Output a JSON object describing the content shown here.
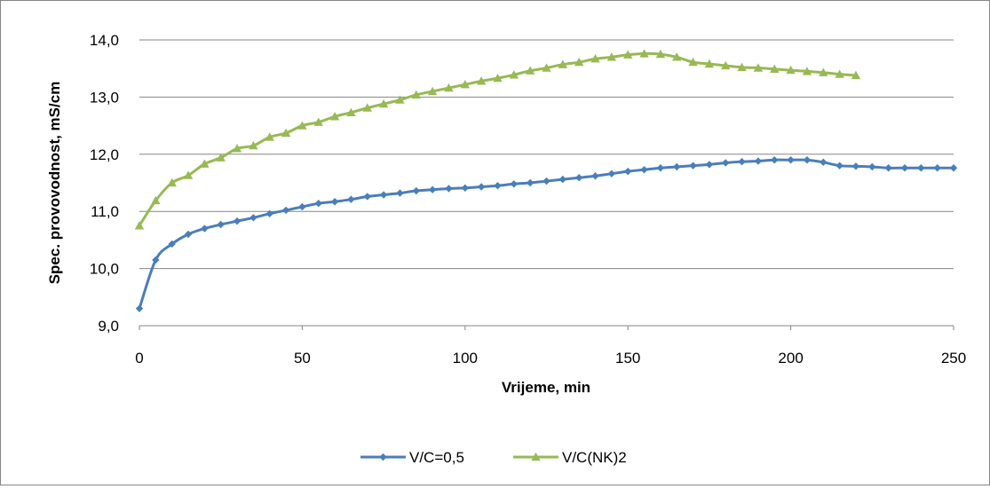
{
  "chart_data": {
    "type": "line",
    "title": "",
    "xlabel": "Vrijeme, min",
    "ylabel": "Spec. provovodnost, mS/cm",
    "xlim": [
      0,
      250
    ],
    "ylim": [
      9.0,
      14.0
    ],
    "x_ticks": [
      0,
      50,
      100,
      150,
      200,
      250
    ],
    "y_ticks": [
      9.0,
      10.0,
      11.0,
      12.0,
      13.0,
      14.0
    ],
    "x_tick_labels": [
      "0",
      "50",
      "100",
      "150",
      "200",
      "250"
    ],
    "y_tick_labels": [
      "9,0",
      "10,0",
      "11,0",
      "12,0",
      "13,0",
      "14,0"
    ],
    "grid": "horizontal",
    "legend_position": "bottom",
    "series": [
      {
        "name": "V/C=0,5",
        "color": "#4a7ebb",
        "marker": "diamond",
        "x": [
          0,
          5,
          10,
          15,
          20,
          25,
          30,
          35,
          40,
          45,
          50,
          55,
          60,
          65,
          70,
          75,
          80,
          85,
          90,
          95,
          100,
          105,
          110,
          115,
          120,
          125,
          130,
          135,
          140,
          145,
          150,
          155,
          160,
          165,
          170,
          175,
          180,
          185,
          190,
          195,
          200,
          205,
          210,
          215,
          220,
          225,
          230,
          235,
          240,
          245,
          250
        ],
        "y": [
          9.3,
          10.15,
          10.43,
          10.6,
          10.7,
          10.77,
          10.83,
          10.89,
          10.96,
          11.02,
          11.08,
          11.14,
          11.17,
          11.21,
          11.26,
          11.29,
          11.32,
          11.36,
          11.38,
          11.4,
          11.41,
          11.43,
          11.45,
          11.48,
          11.5,
          11.53,
          11.56,
          11.59,
          11.62,
          11.66,
          11.7,
          11.73,
          11.76,
          11.78,
          11.8,
          11.82,
          11.85,
          11.87,
          11.88,
          11.9,
          11.9,
          11.9,
          11.86,
          11.8,
          11.79,
          11.78,
          11.76,
          11.76,
          11.76,
          11.76,
          11.76
        ]
      },
      {
        "name": "V/C(NK)2",
        "color": "#98b954",
        "marker": "triangle",
        "x": [
          0,
          5,
          10,
          15,
          20,
          25,
          30,
          35,
          40,
          45,
          50,
          55,
          60,
          65,
          70,
          75,
          80,
          85,
          90,
          95,
          100,
          105,
          110,
          115,
          120,
          125,
          130,
          135,
          140,
          145,
          150,
          155,
          160,
          165,
          170,
          175,
          180,
          185,
          190,
          195,
          200,
          205,
          210,
          215,
          220
        ],
        "y": [
          10.75,
          11.19,
          11.5,
          11.63,
          11.83,
          11.94,
          12.1,
          12.15,
          12.3,
          12.37,
          12.5,
          12.56,
          12.66,
          12.73,
          12.81,
          12.88,
          12.95,
          13.04,
          13.1,
          13.16,
          13.22,
          13.28,
          13.33,
          13.39,
          13.46,
          13.51,
          13.57,
          13.61,
          13.67,
          13.7,
          13.74,
          13.76,
          13.75,
          13.7,
          13.61,
          13.58,
          13.55,
          13.52,
          13.51,
          13.49,
          13.47,
          13.45,
          13.43,
          13.4,
          13.38
        ]
      }
    ]
  }
}
